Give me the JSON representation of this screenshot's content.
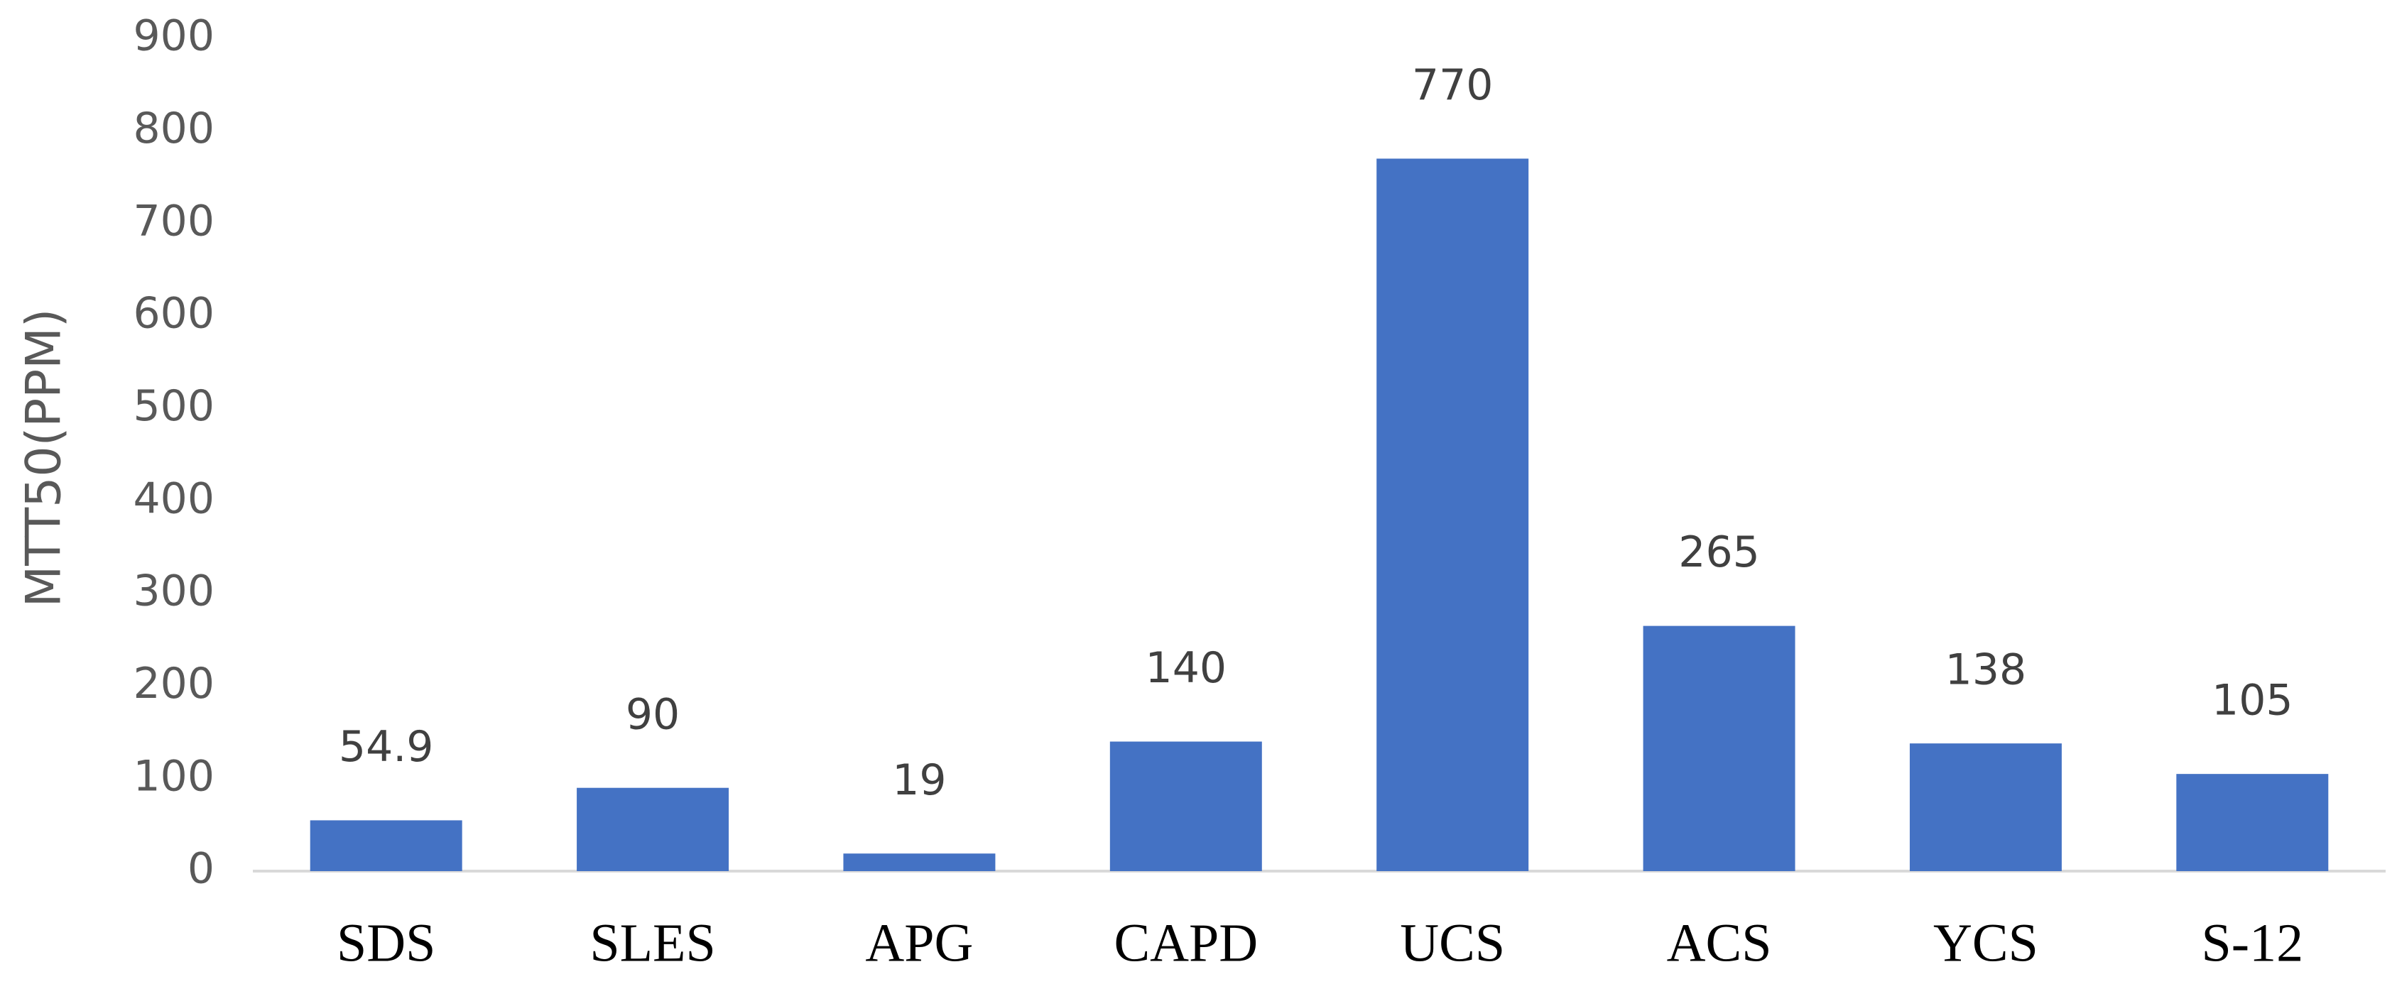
{
  "chart_data": {
    "type": "bar",
    "y_label": "MTT50(PPM)",
    "categories": [
      "SDS",
      "SLES",
      "APG",
      "CAPD",
      "UCS",
      "ACS",
      "YCS",
      "S-12"
    ],
    "values": [
      54.9,
      90,
      19,
      140,
      770,
      265,
      138,
      105
    ],
    "color": "#4472c4",
    "ylim": [
      0,
      900
    ],
    "yticks": [
      0,
      100,
      200,
      300,
      400,
      500,
      600,
      700,
      800,
      900
    ],
    "grid": false
  }
}
